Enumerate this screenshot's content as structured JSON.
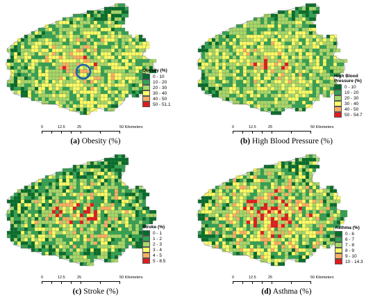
{
  "colors": {
    "c1": "#006d2c",
    "c2": "#31a354",
    "c3": "#a6d96a",
    "c4": "#ffff66",
    "c5": "#fdae61",
    "c6": "#e31a1c",
    "highlight": "#1f5fb0"
  },
  "scale": {
    "ticks": [
      "0",
      "12.5",
      "25",
      "50 Kilometers"
    ]
  },
  "panels": [
    {
      "caption_letter": "(a)",
      "caption_text": "Obesity (%)",
      "legend_title": "Obesity (%)",
      "legend": [
        "0 - 10",
        "10 - 20",
        "20 - 30",
        "30 - 40",
        "40 - 50",
        "50 - 51.1"
      ],
      "weights": [
        0.08,
        0.22,
        0.3,
        0.25,
        0.11,
        0.04
      ]
    },
    {
      "caption_letter": "(b)",
      "caption_text": "High Blood Pressure (%)",
      "legend_title": "High Blood Pressure (%)",
      "legend": [
        "0 - 10",
        "10 - 20",
        "20 - 30",
        "30 - 40",
        "40 - 50",
        "50 - 54.7"
      ],
      "weights": [
        0.06,
        0.24,
        0.32,
        0.25,
        0.09,
        0.04
      ]
    },
    {
      "caption_letter": "(c)",
      "caption_text": "Stroke (%)",
      "legend_title": "Stroke (%)",
      "legend": [
        "0 - 1",
        "1 - 2",
        "2 - 3",
        "3 - 4",
        "4 - 5",
        "5 - 8.5"
      ],
      "weights": [
        0.2,
        0.26,
        0.22,
        0.14,
        0.09,
        0.09
      ]
    },
    {
      "caption_letter": "(d)",
      "caption_text": "Asthma (%)",
      "legend_title": "Asthma (%)",
      "legend": [
        "0 - 6",
        "6 - 7",
        "7 - 8",
        "8 - 9",
        "9 - 10",
        "10 - 14.3"
      ],
      "weights": [
        0.1,
        0.18,
        0.24,
        0.2,
        0.14,
        0.14
      ]
    }
  ]
}
